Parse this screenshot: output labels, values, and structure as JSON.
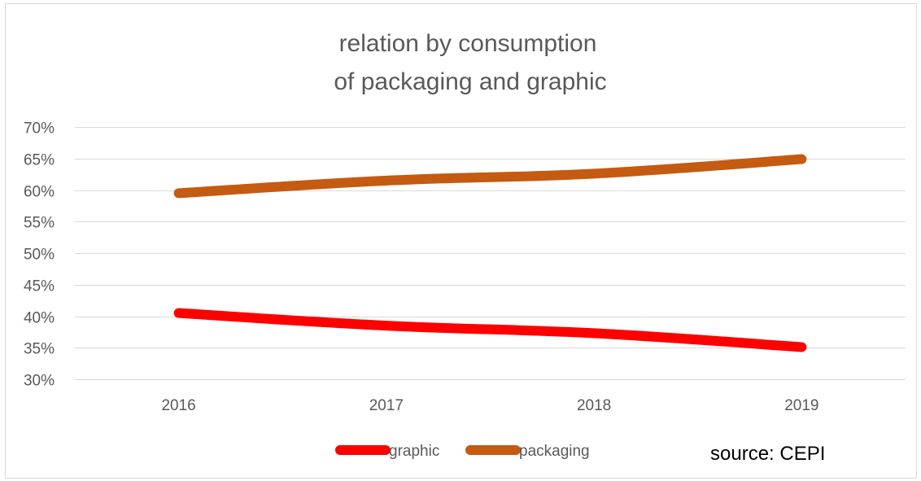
{
  "chart_data": {
    "type": "line",
    "title_lines": [
      "relation by consumption",
      "of packaging and graphic"
    ],
    "categories": [
      "2016",
      "2017",
      "2018",
      "2019"
    ],
    "ylim": [
      0.3,
      0.7
    ],
    "yticks": [
      0.3,
      0.35,
      0.4,
      0.45,
      0.5,
      0.55,
      0.6,
      0.65,
      0.7
    ],
    "ytick_labels": [
      "30%",
      "35%",
      "40%",
      "45%",
      "50%",
      "55%",
      "60%",
      "65%",
      "70%"
    ],
    "grid": true,
    "legend_position": "bottom",
    "series": [
      {
        "name": "graphic",
        "color": "#ff0000",
        "values": [
          0.405,
          0.385,
          0.373,
          0.351
        ]
      },
      {
        "name": "packaging",
        "color": "#c55a11",
        "values": [
          0.595,
          0.615,
          0.626,
          0.649
        ]
      }
    ],
    "source": "source: CEPI"
  }
}
